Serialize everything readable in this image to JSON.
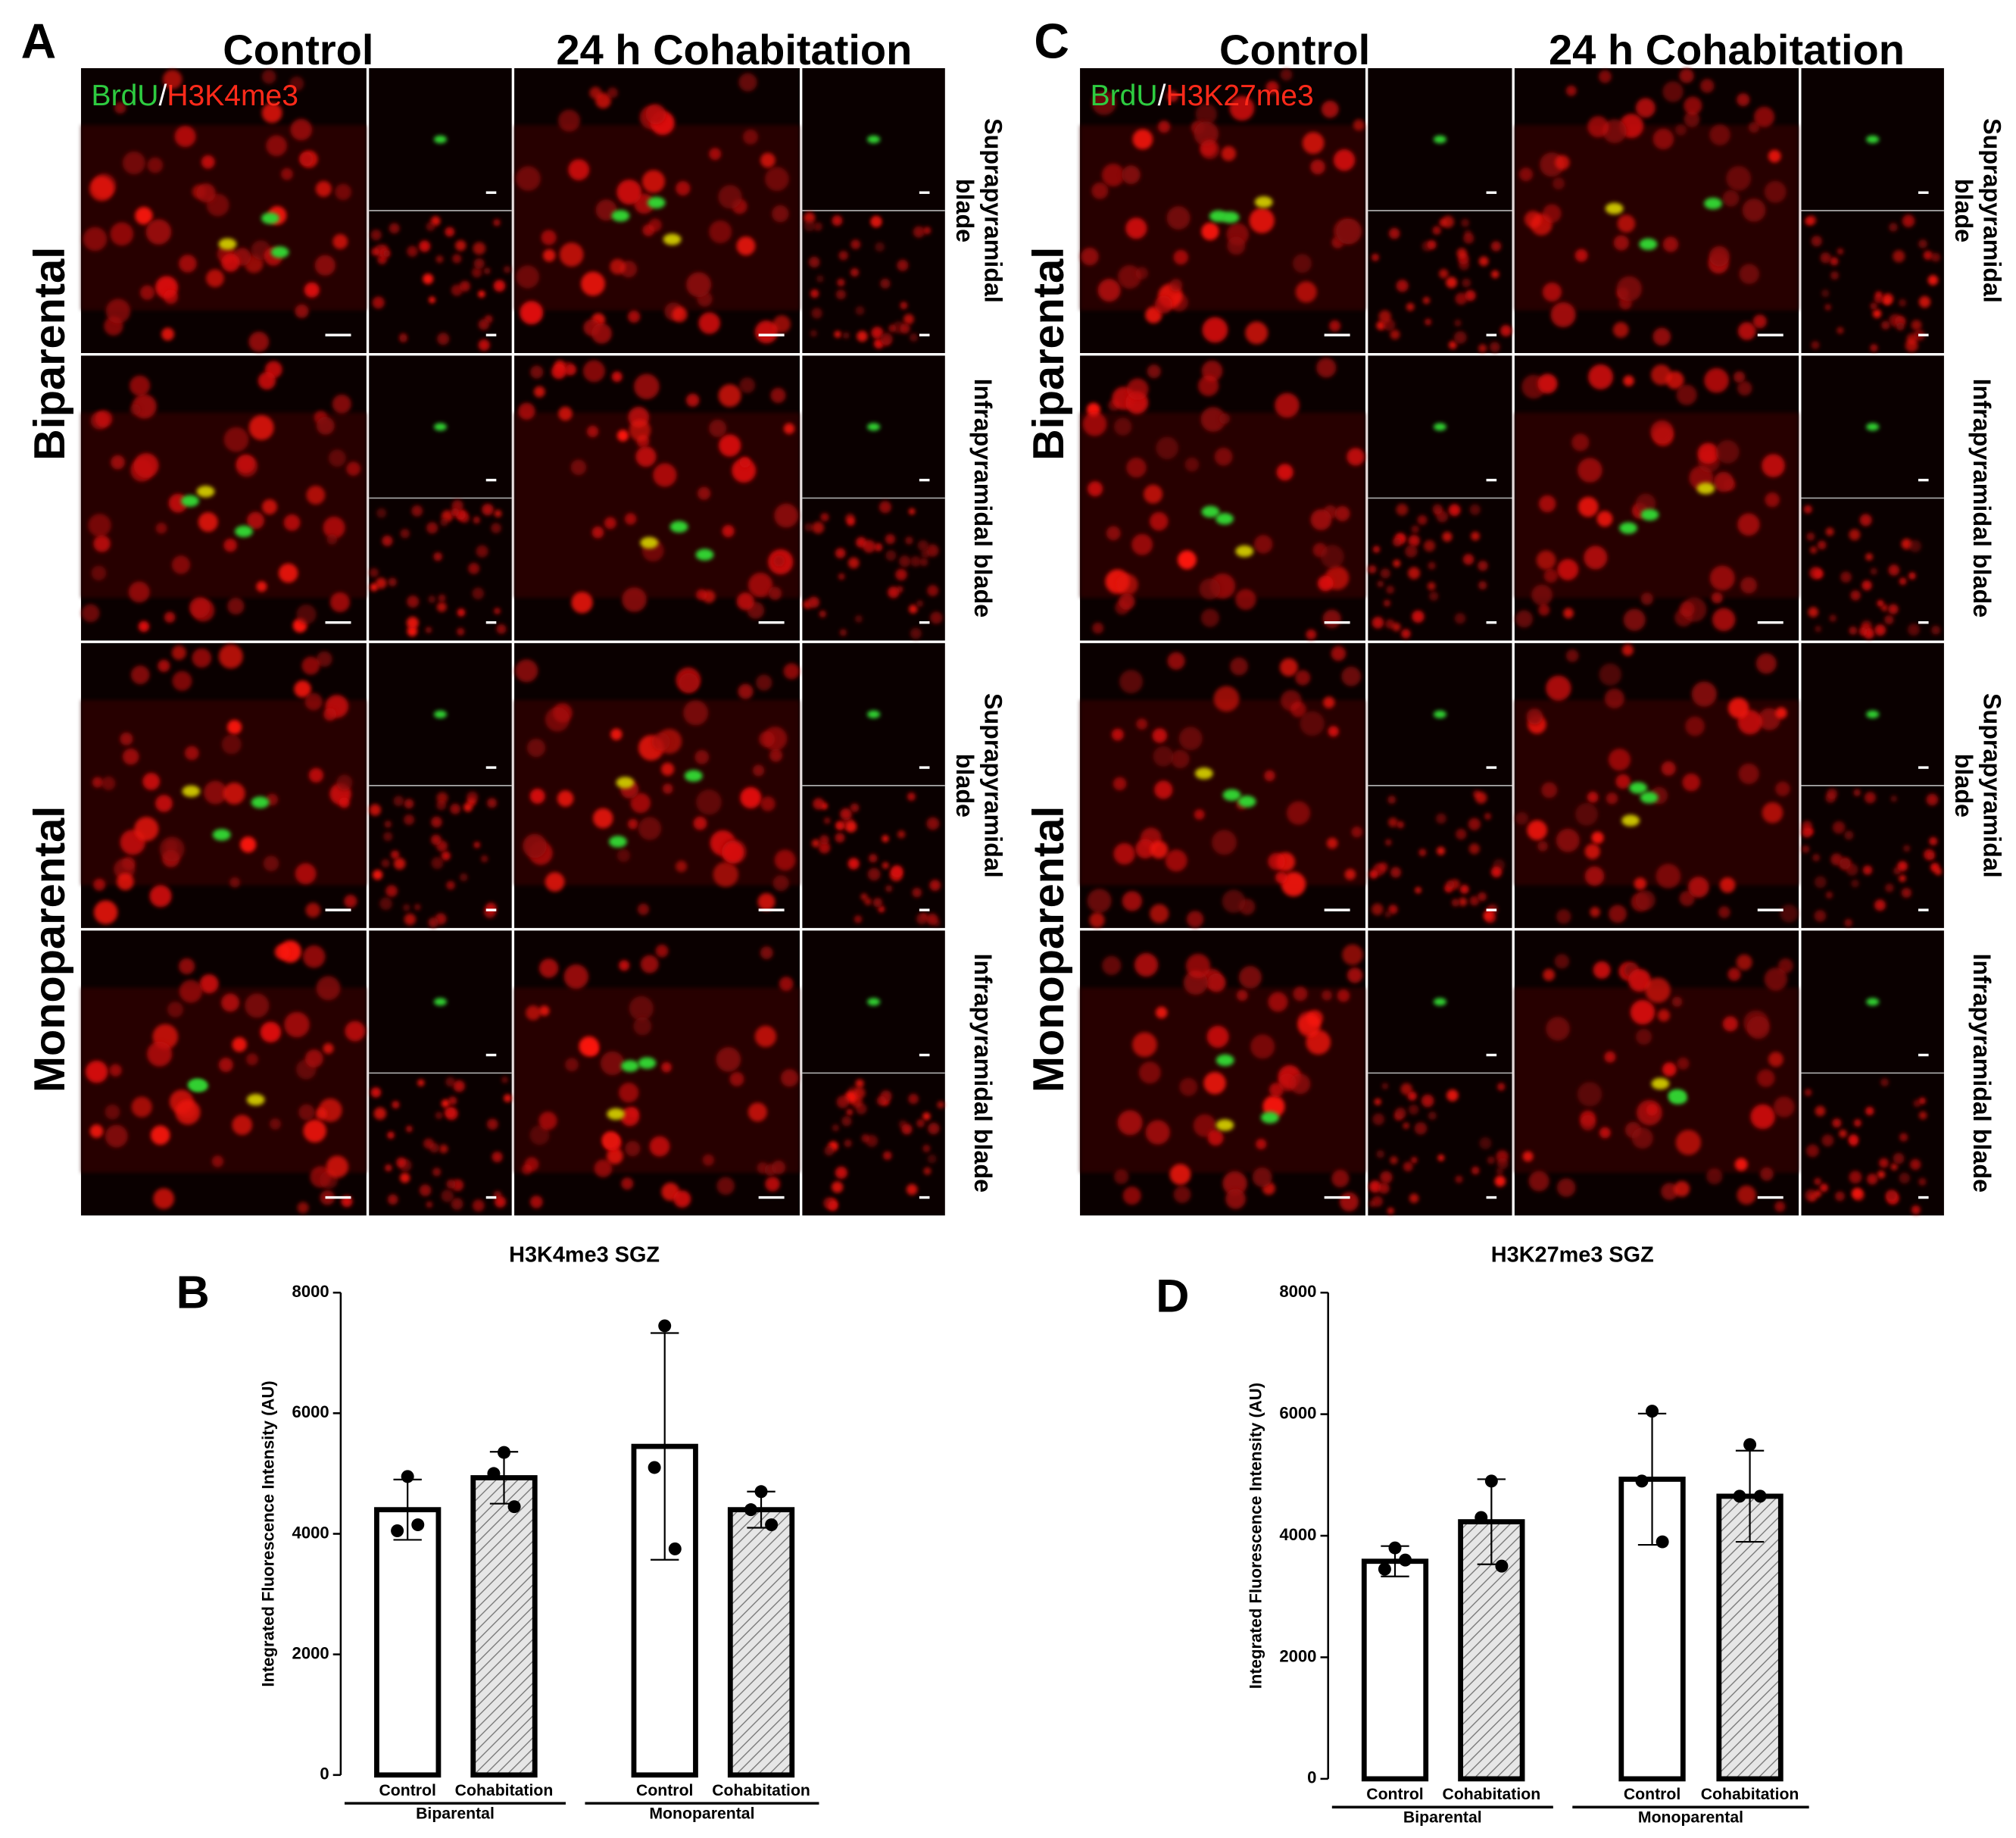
{
  "panel_a": {
    "letter": "A",
    "columns": [
      "Control",
      "24 h Cohabitation"
    ],
    "stain": [
      "BrdU",
      "/",
      "H3K4me3"
    ],
    "rows": [
      "Biparental",
      "Monoparental"
    ],
    "blades": [
      [
        "Suprapyramidal",
        "blade"
      ],
      [
        "Infrapyramidal blade"
      ],
      [
        "Suprapyramidal",
        "blade"
      ],
      [
        "Infrapyramidal blade"
      ]
    ]
  },
  "panel_c": {
    "letter": "C",
    "columns": [
      "Control",
      "24 h Cohabitation"
    ],
    "stain": [
      "BrdU",
      "/",
      "H3K27me3"
    ],
    "rows": [
      "Biparental",
      "Monoparental"
    ],
    "blades": [
      [
        "Suprapyramidal",
        "blade"
      ],
      [
        "Infrapyramidal blade"
      ],
      [
        "Suprapyramidal",
        "blade"
      ],
      [
        "Infrapyramidal blade"
      ]
    ]
  },
  "chart_data": [
    {
      "type": "bar",
      "letter": "B",
      "title": "H3K4me3 SGZ",
      "y_label": "Integrated Fluorescence Intensity (AU)",
      "categories": [
        "Control",
        "Cohabitation",
        "Control",
        "Cohabitation"
      ],
      "groups": [
        "Biparental",
        "Monoparental"
      ],
      "values": [
        4400,
        4930,
        5450,
        4400
      ],
      "errors": [
        500,
        430,
        1880,
        300
      ],
      "points": [
        [
          4950,
          4050,
          4150
        ],
        [
          5350,
          5000,
          4450
        ],
        [
          7450,
          5100,
          3750
        ],
        [
          4700,
          4400,
          4150
        ]
      ],
      "hatched": [
        false,
        true,
        false,
        true
      ],
      "color": "#000000",
      "ylim": [
        0,
        8000
      ],
      "yticks": [
        0,
        2000,
        4000,
        6000,
        8000
      ]
    },
    {
      "type": "bar",
      "letter": "D",
      "title": "H3K27me3 SGZ",
      "y_label": "Integrated Fluorescence Intensity (AU)",
      "categories": [
        "Control",
        "Cohabitation",
        "Control",
        "Cohabitation"
      ],
      "groups": [
        "Biparental",
        "Monoparental"
      ],
      "values": [
        3580,
        4230,
        4930,
        4650
      ],
      "errors": [
        250,
        700,
        1080,
        750
      ],
      "points": [
        [
          3800,
          3450,
          3600
        ],
        [
          4900,
          4300,
          3500
        ],
        [
          6050,
          4900,
          3900
        ],
        [
          5500,
          4650,
          4650
        ]
      ],
      "hatched": [
        false,
        true,
        false,
        true
      ],
      "color": "#000000",
      "ylim": [
        0,
        8000
      ],
      "yticks": [
        0,
        2000,
        4000,
        6000,
        8000
      ]
    }
  ]
}
